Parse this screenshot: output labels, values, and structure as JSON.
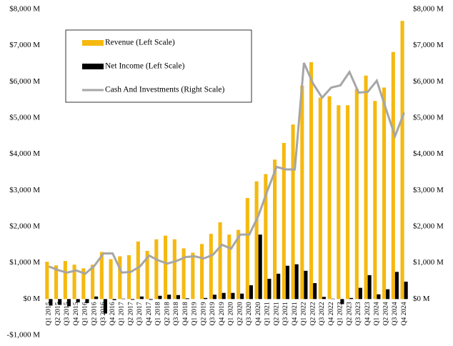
{
  "chart_data": {
    "type": "bar_line",
    "categories": [
      "Q1 2015",
      "Q2 2015",
      "Q3 2015",
      "Q4 2015",
      "Q1 2016",
      "Q2 2016",
      "Q3 2016",
      "Q4 2016",
      "Q1 2017",
      "Q2 2017",
      "Q3 2017",
      "Q4 2017",
      "Q1 2018",
      "Q2 2018",
      "Q3 2018",
      "Q4 2018",
      "Q1 2019",
      "Q2 2019",
      "Q3 2019",
      "Q4 2019",
      "Q1 2020",
      "Q2 2020",
      "Q3 2020",
      "Q4 2020",
      "Q1 2021",
      "Q2 2021",
      "Q3 2021",
      "Q4 2021",
      "Q1 2022",
      "Q2 2022",
      "Q3 2022",
      "Q4 2022",
      "Q1 2023",
      "Q2 2023",
      "Q3 2023",
      "Q4 2023",
      "Q1 2024",
      "Q2 2024",
      "Q3 2024",
      "Q4 2024"
    ],
    "series": [
      {
        "name": "Revenue (Left Scale)",
        "color": "#f5b90f",
        "kind": "bar",
        "values": [
          1030,
          930,
          1050,
          950,
          850,
          950,
          1300,
          1100,
          1180,
          1210,
          1590,
          1330,
          1650,
          1750,
          1650,
          1400,
          1280,
          1520,
          1800,
          2120,
          1780,
          1910,
          2790,
          3250,
          3450,
          3850,
          4310,
          4820,
          5890,
          6540,
          5560,
          5600,
          5350,
          5350,
          5800,
          6170,
          5470,
          5840,
          6820,
          7680
        ]
      },
      {
        "name": "Net Income (Left Scale)",
        "color": "#000000",
        "kind": "bar",
        "values": [
          -180,
          -160,
          -200,
          -90,
          -110,
          70,
          -400,
          -30,
          10,
          -20,
          70,
          -20,
          90,
          120,
          110,
          20,
          0,
          30,
          120,
          170,
          170,
          150,
          380,
          1780,
          560,
          700,
          920,
          960,
          780,
          440,
          60,
          10,
          -140,
          30,
          310,
          660,
          130,
          270,
          750,
          480
        ]
      },
      {
        "name": "Cash And Investments (Right Scale)",
        "color": "#a6a6a6",
        "kind": "line",
        "axis": "y2",
        "values": [
          900,
          800,
          730,
          790,
          700,
          920,
          1260,
          1260,
          730,
          750,
          900,
          1200,
          1070,
          980,
          1050,
          1160,
          1180,
          1120,
          1220,
          1500,
          1390,
          1780,
          1780,
          2300,
          3000,
          3650,
          3580,
          3580,
          6520,
          5950,
          5560,
          5840,
          5900,
          6270,
          5700,
          5720,
          6030,
          5250,
          4500,
          5150
        ]
      }
    ],
    "ylim": [
      -1000,
      8000
    ],
    "yticks": [
      {
        "value": -1000,
        "label": "-$1,000 M"
      },
      {
        "value": 0,
        "label": "$0 M"
      },
      {
        "value": 1000,
        "label": "$1,000 M"
      },
      {
        "value": 2000,
        "label": "$2,000 M"
      },
      {
        "value": 3000,
        "label": "$3,000 M"
      },
      {
        "value": 4000,
        "label": "$4,000 M"
      },
      {
        "value": 5000,
        "label": "$5,000 M"
      },
      {
        "value": 6000,
        "label": "$6,000 M"
      },
      {
        "value": 7000,
        "label": "$7,000 M"
      },
      {
        "value": 8000,
        "label": "$8,000 M"
      }
    ],
    "y2lim": [
      -1000,
      8000
    ],
    "y2ticks": [
      {
        "value": 0,
        "label": "$0 M"
      },
      {
        "value": 1000,
        "label": "$1,000 M"
      },
      {
        "value": 2000,
        "label": "$2,000 M"
      },
      {
        "value": 3000,
        "label": "$3,000 M"
      },
      {
        "value": 4000,
        "label": "$4,000 M"
      },
      {
        "value": 5000,
        "label": "$5,000 M"
      },
      {
        "value": 6000,
        "label": "$6,000 M"
      },
      {
        "value": 7000,
        "label": "$7,000 M"
      },
      {
        "value": 8000,
        "label": "$8,000 M"
      }
    ],
    "legend": "upper left",
    "grid": false
  }
}
